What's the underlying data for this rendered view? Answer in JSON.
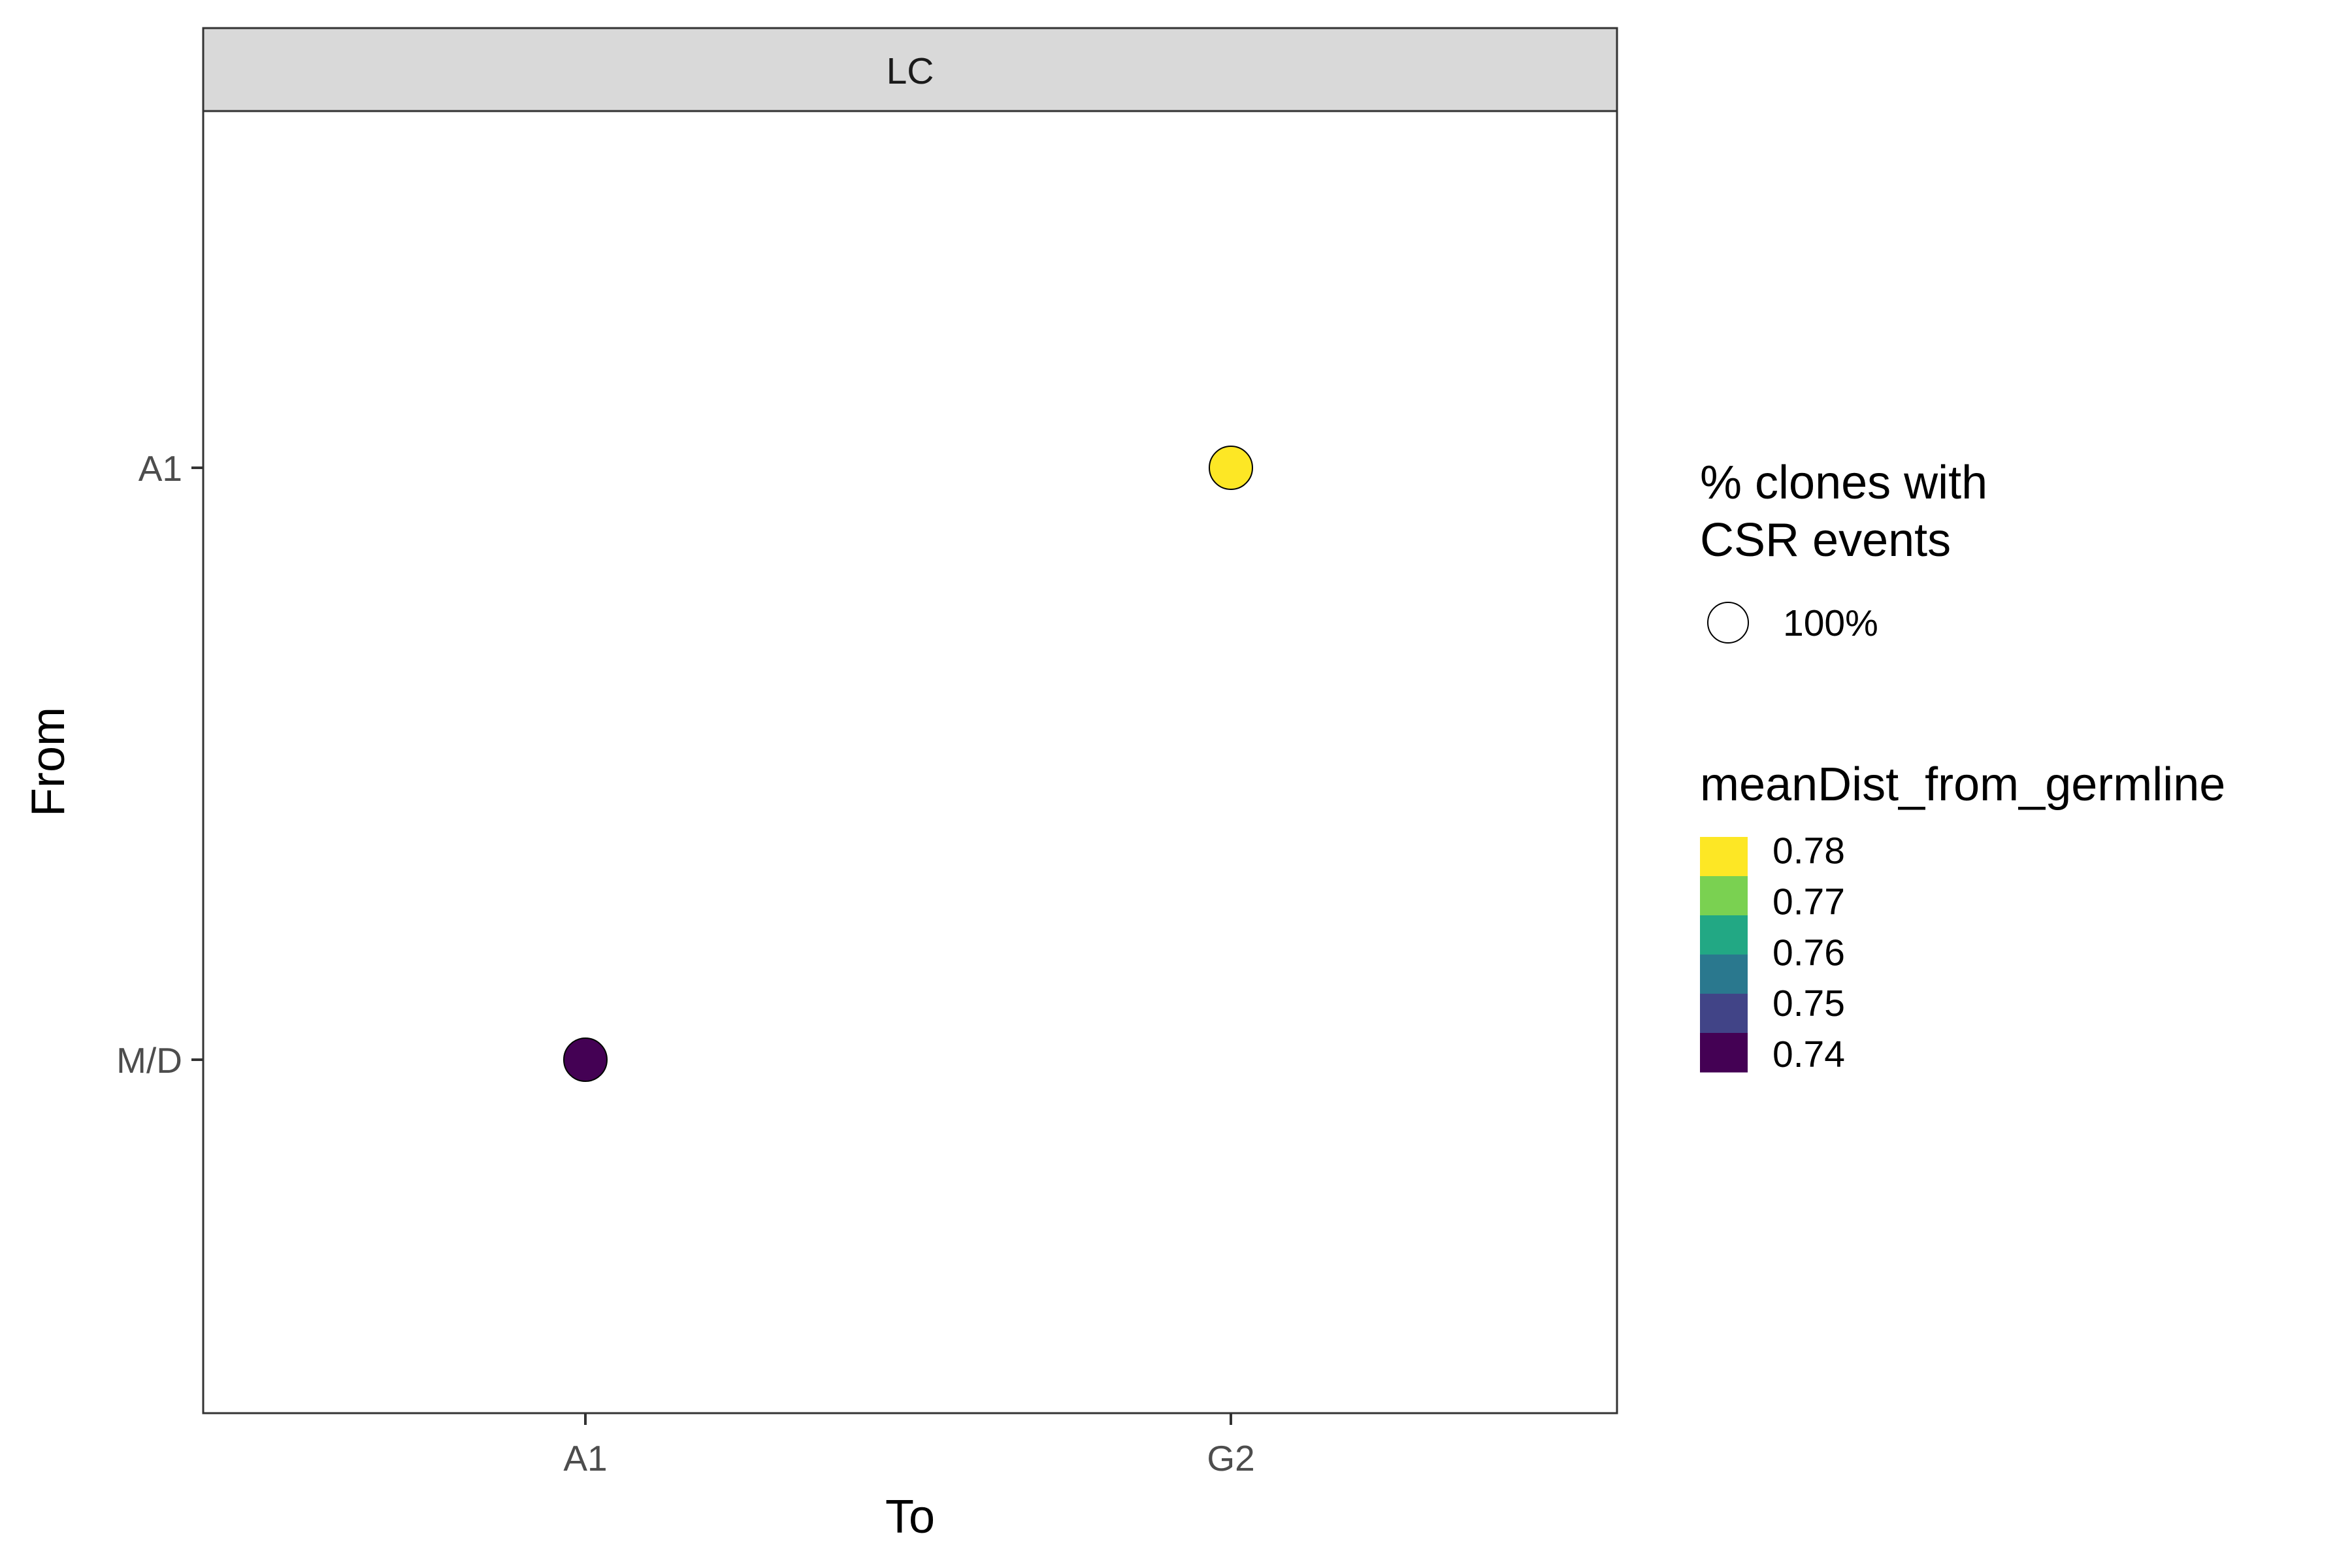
{
  "chart_data": {
    "type": "scatter",
    "facet": "LC",
    "x_categories": [
      "A1",
      "G2"
    ],
    "y_categories": [
      "M/D",
      "A1"
    ],
    "xlabel": "To",
    "ylabel": "From",
    "grid": false,
    "points": [
      {
        "x": "A1",
        "y": "M/D",
        "color_value": 0.74,
        "size_value": "100%",
        "color": "#440154"
      },
      {
        "x": "G2",
        "y": "A1",
        "color_value": 0.78,
        "size_value": "100%",
        "color": "#FDE725"
      }
    ],
    "legend": {
      "placement": "right",
      "size": {
        "title_line1": "% clones with",
        "title_line2": "CSR events",
        "label": "100%"
      },
      "color": {
        "title": "meanDist_from_germline",
        "breaks": [
          0.78,
          0.77,
          0.76,
          0.75,
          0.74
        ],
        "labels": [
          "0.78",
          "0.77",
          "0.76",
          "0.75",
          "0.74"
        ],
        "colors": [
          "#FDE725",
          "#7AD151",
          "#22A884",
          "#2A788E",
          "#414487",
          "#440154"
        ],
        "range": [
          0.7363,
          0.7825
        ]
      }
    }
  }
}
